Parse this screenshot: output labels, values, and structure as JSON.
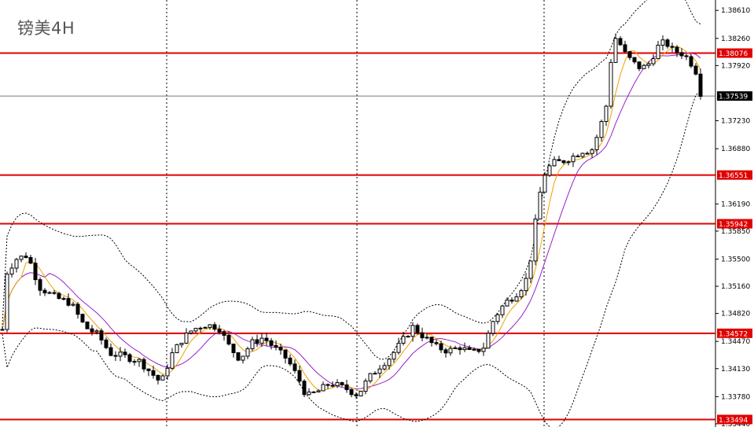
{
  "chart_data": {
    "type": "candlestick",
    "title": "镑美4H",
    "y_ticks": [
      "1.38610",
      "1.38260",
      "1.37920",
      "1.37230",
      "1.36880",
      "1.36190",
      "1.35850",
      "1.35500",
      "1.35160",
      "1.34820",
      "1.34470",
      "1.34130",
      "1.33780",
      "1.33440"
    ],
    "ylim": [
      1.334,
      1.3874
    ],
    "grid": "vertical dotted separators",
    "current_price": {
      "value": 1.37539,
      "label": "1.37539",
      "color": "#6e7b8b"
    },
    "levels": [
      {
        "value": 1.38076,
        "label": "1.38076"
      },
      {
        "value": 1.36551,
        "label": "1.36551"
      },
      {
        "value": 1.35942,
        "label": "1.35942"
      },
      {
        "value": 1.34572,
        "label": "1.34572"
      },
      {
        "value": 1.33494,
        "label": "1.33494"
      }
    ],
    "level_color": "#e00000",
    "indicators": [
      "Bollinger Bands (dotted black)",
      "MA fast (orange)",
      "MA slow (purple)"
    ],
    "colors": {
      "up_body": "#ffffff",
      "down_body": "#000000",
      "wick": "#000000",
      "ma_fast": "#f0a000",
      "ma_slow": "#9a20c8",
      "bands": "#000000"
    }
  }
}
